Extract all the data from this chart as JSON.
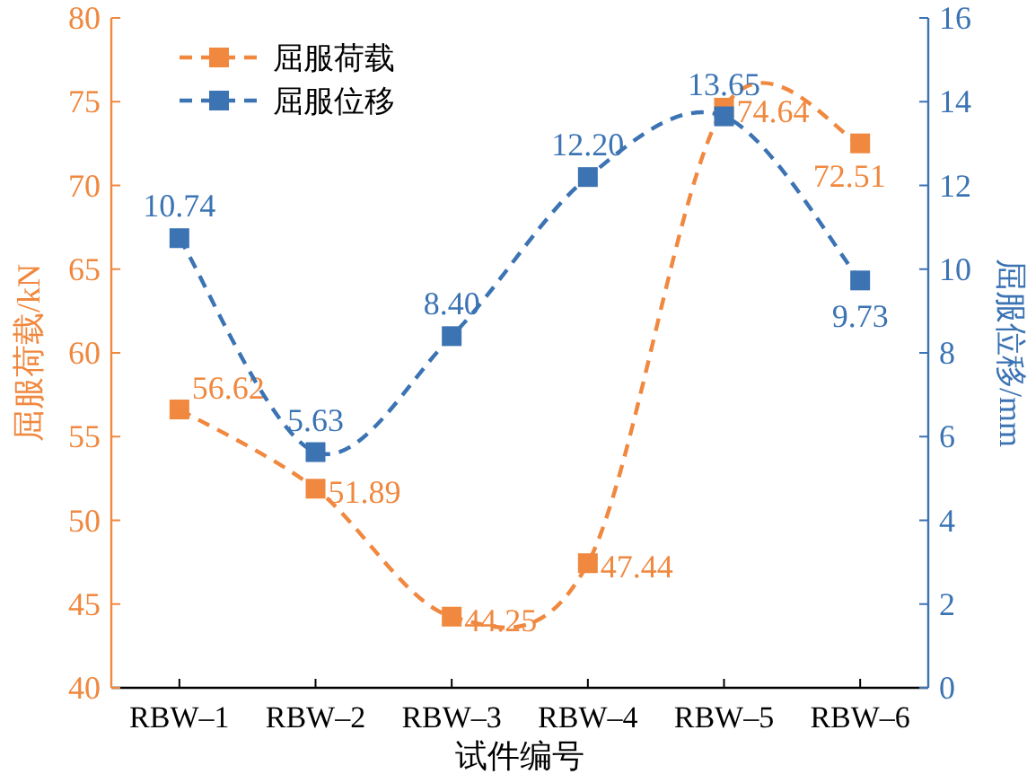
{
  "chart_data": {
    "type": "line",
    "xlabel": "试件编号",
    "ylabel": "屈服荷载/kN",
    "y2label": "屈服位移/mm",
    "categories": [
      "RBW–1",
      "RBW–2",
      "RBW–3",
      "RBW–4",
      "RBW–5",
      "RBW–6"
    ],
    "series": [
      {
        "name": "屈服荷载",
        "color": "#f0883f",
        "values": [
          56.62,
          51.89,
          44.25,
          47.44,
          74.64,
          72.51
        ],
        "value_labels": [
          "56.62",
          "51.89",
          "44.25",
          "47.44",
          "74.64",
          "72.51"
        ]
      },
      {
        "name": "屈服位移",
        "color": "#3b73b3",
        "axis": "y2",
        "values": [
          10.74,
          5.63,
          8.4,
          12.2,
          13.65,
          9.73
        ],
        "value_labels": [
          "10.74",
          "5.63",
          "8.40",
          "12.20",
          "13.65",
          "9.73"
        ]
      }
    ],
    "ylim": [
      40,
      80
    ],
    "yticks": [
      40,
      45,
      50,
      55,
      60,
      65,
      70,
      75,
      80
    ],
    "y2lim": [
      0,
      16
    ],
    "y2ticks": [
      0,
      2,
      4,
      6,
      8,
      10,
      12,
      14,
      16
    ],
    "legend": "top left",
    "marker": "square",
    "line_style": "dashed",
    "grid": false
  }
}
